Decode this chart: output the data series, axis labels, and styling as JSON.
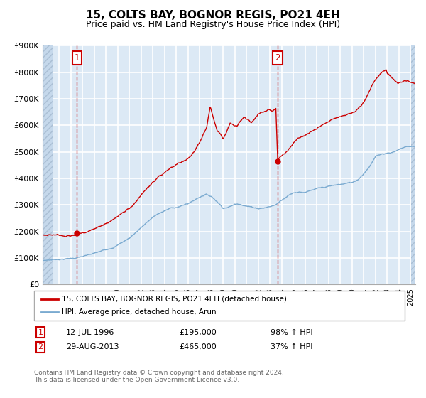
{
  "title": "15, COLTS BAY, BOGNOR REGIS, PO21 4EH",
  "subtitle": "Price paid vs. HM Land Registry's House Price Index (HPI)",
  "ylim": [
    0,
    900000
  ],
  "yticks": [
    0,
    100000,
    200000,
    300000,
    400000,
    500000,
    600000,
    700000,
    800000,
    900000
  ],
  "ytick_labels": [
    "£0",
    "£100K",
    "£200K",
    "£300K",
    "£400K",
    "£500K",
    "£600K",
    "£700K",
    "£800K",
    "£900K"
  ],
  "xlim_start": 1993.6,
  "xlim_end": 2025.4,
  "background_color": "#dce9f5",
  "hatch_color": "#b8cfe0",
  "grid_color": "#ffffff",
  "sale1_date": 1996.53,
  "sale1_price": 195000,
  "sale1_label": "1",
  "sale2_date": 2013.66,
  "sale2_price": 465000,
  "sale2_label": "2",
  "legend_line1": "15, COLTS BAY, BOGNOR REGIS, PO21 4EH (detached house)",
  "legend_line2": "HPI: Average price, detached house, Arun",
  "footer": "Contains HM Land Registry data © Crown copyright and database right 2024.\nThis data is licensed under the Open Government Licence v3.0.",
  "sale_color": "#cc0000",
  "hpi_color": "#7aaad0",
  "title_fontsize": 11,
  "subtitle_fontsize": 9,
  "hpi_ctrl": [
    [
      1993.6,
      90000
    ],
    [
      1994,
      92000
    ],
    [
      1994.5,
      94000
    ],
    [
      1995,
      97000
    ],
    [
      1995.5,
      99000
    ],
    [
      1996,
      101000
    ],
    [
      1996.5,
      104000
    ],
    [
      1997,
      108000
    ],
    [
      1997.5,
      112000
    ],
    [
      1998,
      117000
    ],
    [
      1998.5,
      123000
    ],
    [
      1999,
      130000
    ],
    [
      1999.5,
      140000
    ],
    [
      2000,
      152000
    ],
    [
      2000.5,
      165000
    ],
    [
      2001,
      178000
    ],
    [
      2001.5,
      198000
    ],
    [
      2002,
      220000
    ],
    [
      2002.5,
      240000
    ],
    [
      2003,
      258000
    ],
    [
      2003.5,
      272000
    ],
    [
      2004,
      282000
    ],
    [
      2004.5,
      291000
    ],
    [
      2005,
      296000
    ],
    [
      2005.5,
      302000
    ],
    [
      2006,
      310000
    ],
    [
      2006.5,
      322000
    ],
    [
      2007,
      336000
    ],
    [
      2007.5,
      348000
    ],
    [
      2008,
      340000
    ],
    [
      2008.5,
      322000
    ],
    [
      2009,
      300000
    ],
    [
      2009.5,
      305000
    ],
    [
      2010,
      315000
    ],
    [
      2010.5,
      318000
    ],
    [
      2011,
      313000
    ],
    [
      2011.5,
      308000
    ],
    [
      2012,
      305000
    ],
    [
      2012.5,
      308000
    ],
    [
      2013,
      313000
    ],
    [
      2013.5,
      320000
    ],
    [
      2014,
      340000
    ],
    [
      2014.5,
      358000
    ],
    [
      2015,
      370000
    ],
    [
      2015.5,
      375000
    ],
    [
      2016,
      375000
    ],
    [
      2016.5,
      380000
    ],
    [
      2017,
      384000
    ],
    [
      2017.5,
      386000
    ],
    [
      2018,
      390000
    ],
    [
      2018.5,
      393000
    ],
    [
      2019,
      396000
    ],
    [
      2019.5,
      400000
    ],
    [
      2020,
      402000
    ],
    [
      2020.5,
      415000
    ],
    [
      2021,
      440000
    ],
    [
      2021.5,
      470000
    ],
    [
      2022,
      505000
    ],
    [
      2022.5,
      515000
    ],
    [
      2023,
      520000
    ],
    [
      2023.5,
      525000
    ],
    [
      2024,
      535000
    ],
    [
      2024.5,
      545000
    ],
    [
      2025,
      548000
    ],
    [
      2025.4,
      548000
    ]
  ],
  "red_ctrl": [
    [
      1993.6,
      185000
    ],
    [
      1994,
      187000
    ],
    [
      1994.5,
      189000
    ],
    [
      1995,
      191000
    ],
    [
      1995.5,
      192000
    ],
    [
      1996,
      193000
    ],
    [
      1996.53,
      195000
    ],
    [
      1997,
      200000
    ],
    [
      1997.5,
      210000
    ],
    [
      1998,
      218000
    ],
    [
      1998.5,
      228000
    ],
    [
      1999,
      238000
    ],
    [
      1999.5,
      250000
    ],
    [
      2000,
      265000
    ],
    [
      2000.5,
      282000
    ],
    [
      2001,
      298000
    ],
    [
      2001.5,
      320000
    ],
    [
      2002,
      345000
    ],
    [
      2002.5,
      368000
    ],
    [
      2003,
      388000
    ],
    [
      2003.5,
      402000
    ],
    [
      2004,
      415000
    ],
    [
      2004.5,
      430000
    ],
    [
      2005,
      440000
    ],
    [
      2005.5,
      452000
    ],
    [
      2006,
      465000
    ],
    [
      2006.5,
      492000
    ],
    [
      2007,
      530000
    ],
    [
      2007.3,
      560000
    ],
    [
      2007.6,
      590000
    ],
    [
      2007.9,
      670000
    ],
    [
      2008.2,
      620000
    ],
    [
      2008.5,
      575000
    ],
    [
      2008.8,
      565000
    ],
    [
      2009,
      550000
    ],
    [
      2009.3,
      580000
    ],
    [
      2009.6,
      610000
    ],
    [
      2009.9,
      600000
    ],
    [
      2010.2,
      595000
    ],
    [
      2010.5,
      618000
    ],
    [
      2010.8,
      630000
    ],
    [
      2011.1,
      620000
    ],
    [
      2011.4,
      605000
    ],
    [
      2011.7,
      618000
    ],
    [
      2012.0,
      638000
    ],
    [
      2012.3,
      645000
    ],
    [
      2012.6,
      650000
    ],
    [
      2012.9,
      658000
    ],
    [
      2013.2,
      650000
    ],
    [
      2013.5,
      660000
    ],
    [
      2013.66,
      465000
    ],
    [
      2013.9,
      480000
    ],
    [
      2014.2,
      490000
    ],
    [
      2014.5,
      505000
    ],
    [
      2014.8,
      520000
    ],
    [
      2015.1,
      535000
    ],
    [
      2015.4,
      548000
    ],
    [
      2015.7,
      558000
    ],
    [
      2016.0,
      565000
    ],
    [
      2016.3,
      572000
    ],
    [
      2016.6,
      580000
    ],
    [
      2016.9,
      587000
    ],
    [
      2017.2,
      592000
    ],
    [
      2017.5,
      598000
    ],
    [
      2017.8,
      604000
    ],
    [
      2018.1,
      610000
    ],
    [
      2018.4,
      614000
    ],
    [
      2018.7,
      618000
    ],
    [
      2019.0,
      622000
    ],
    [
      2019.3,
      628000
    ],
    [
      2019.6,
      632000
    ],
    [
      2019.9,
      635000
    ],
    [
      2020.2,
      638000
    ],
    [
      2020.5,
      645000
    ],
    [
      2020.8,
      660000
    ],
    [
      2021.1,
      680000
    ],
    [
      2021.4,
      710000
    ],
    [
      2021.7,
      740000
    ],
    [
      2022.0,
      760000
    ],
    [
      2022.3,
      775000
    ],
    [
      2022.6,
      790000
    ],
    [
      2022.9,
      800000
    ],
    [
      2023.0,
      785000
    ],
    [
      2023.3,
      775000
    ],
    [
      2023.6,
      760000
    ],
    [
      2023.9,
      750000
    ],
    [
      2024.2,
      755000
    ],
    [
      2024.5,
      760000
    ],
    [
      2024.8,
      758000
    ],
    [
      2025.0,
      752000
    ],
    [
      2025.4,
      748000
    ]
  ]
}
